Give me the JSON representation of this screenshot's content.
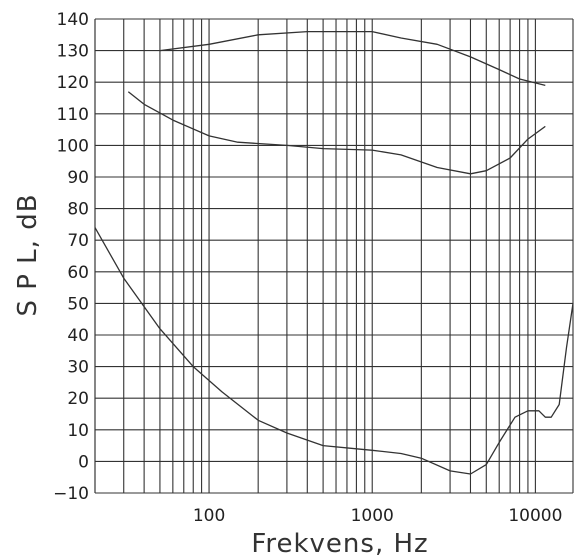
{
  "chart_data": {
    "type": "line",
    "xlabel": "Frekvens, Hz",
    "ylabel": "S P L, dB",
    "xscale": "log",
    "xlim": [
      20,
      17000
    ],
    "ylim": [
      -10,
      140
    ],
    "grid": true,
    "x_tick_labels": [
      "100",
      "1000",
      "10000"
    ],
    "y_tick_labels": [
      "140",
      "130",
      "120",
      "110",
      "100",
      "90",
      "80",
      "70",
      "60",
      "50",
      "40",
      "30",
      "20",
      "10",
      "0",
      "−10"
    ],
    "series": [
      {
        "points": [
          [
            50,
            130
          ],
          [
            100,
            132
          ],
          [
            200,
            135
          ],
          [
            400,
            136
          ],
          [
            700,
            136
          ],
          [
            1000,
            136
          ],
          [
            1500,
            134
          ],
          [
            2500,
            132
          ],
          [
            4000,
            128
          ],
          [
            6000,
            124
          ],
          [
            8000,
            121
          ],
          [
            11500,
            119
          ]
        ]
      },
      {
        "points": [
          [
            32,
            117
          ],
          [
            40,
            113
          ],
          [
            60,
            108
          ],
          [
            100,
            103
          ],
          [
            150,
            101
          ],
          [
            300,
            100
          ],
          [
            500,
            99
          ],
          [
            1000,
            98.5
          ],
          [
            1500,
            97
          ],
          [
            2500,
            93
          ],
          [
            4000,
            91
          ],
          [
            5000,
            92
          ],
          [
            7000,
            96
          ],
          [
            9000,
            102
          ],
          [
            11500,
            106
          ]
        ]
      },
      {
        "points": [
          [
            20,
            74
          ],
          [
            30,
            58
          ],
          [
            50,
            42
          ],
          [
            80,
            30
          ],
          [
            120,
            22
          ],
          [
            200,
            13
          ],
          [
            300,
            9
          ],
          [
            500,
            5
          ],
          [
            800,
            4
          ],
          [
            1000,
            3.5
          ],
          [
            1500,
            2.5
          ],
          [
            2000,
            1
          ],
          [
            3000,
            -3
          ],
          [
            4000,
            -4
          ],
          [
            5000,
            -1
          ],
          [
            6000,
            6
          ],
          [
            7500,
            14
          ],
          [
            9000,
            16
          ],
          [
            10500,
            16
          ],
          [
            11500,
            14
          ],
          [
            12500,
            14
          ],
          [
            14000,
            18
          ],
          [
            15500,
            36
          ],
          [
            17000,
            50
          ]
        ]
      }
    ]
  }
}
